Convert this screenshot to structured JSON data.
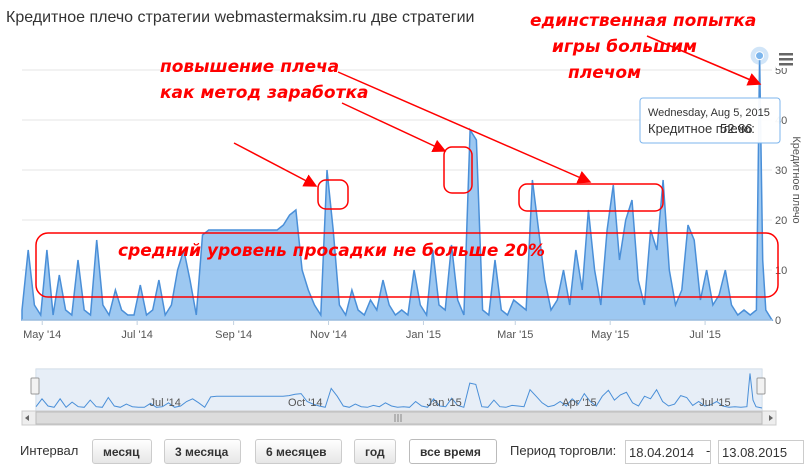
{
  "title": "Кредитное плечо стратегии webmastermaksim.ru две стратегии",
  "chart_data": {
    "type": "area",
    "series": [
      {
        "name": "Кредитное плечо",
        "color": "#7cb5ec"
      }
    ],
    "x": [
      "2014-04-18",
      "2014-04-22",
      "2014-04-26",
      "2014-04-30",
      "2014-05-04",
      "2014-05-08",
      "2014-05-12",
      "2014-05-16",
      "2014-05-20",
      "2014-05-24",
      "2014-05-28",
      "2014-06-01",
      "2014-06-05",
      "2014-06-09",
      "2014-06-13",
      "2014-06-17",
      "2014-06-21",
      "2014-06-25",
      "2014-06-29",
      "2014-07-03",
      "2014-07-07",
      "2014-07-11",
      "2014-07-15",
      "2014-07-19",
      "2014-07-23",
      "2014-07-27",
      "2014-07-31",
      "2014-08-04",
      "2014-08-08",
      "2014-08-12",
      "2014-08-16",
      "2014-08-20",
      "2014-08-24",
      "2014-08-28",
      "2014-09-01",
      "2014-09-05",
      "2014-09-09",
      "2014-09-13",
      "2014-09-17",
      "2014-09-21",
      "2014-09-25",
      "2014-09-29",
      "2014-10-03",
      "2014-10-07",
      "2014-10-11",
      "2014-10-15",
      "2014-10-19",
      "2014-10-23",
      "2014-10-27",
      "2014-10-31",
      "2014-11-04",
      "2014-11-08",
      "2014-11-12",
      "2014-11-16",
      "2014-11-20",
      "2014-11-24",
      "2014-11-28",
      "2014-12-02",
      "2014-12-06",
      "2014-12-10",
      "2014-12-14",
      "2014-12-18",
      "2014-12-22",
      "2014-12-26",
      "2014-12-30",
      "2015-01-03",
      "2015-01-07",
      "2015-01-11",
      "2015-01-15",
      "2015-01-19",
      "2015-01-23",
      "2015-01-27",
      "2015-01-31",
      "2015-02-04",
      "2015-02-08",
      "2015-02-12",
      "2015-02-16",
      "2015-02-20",
      "2015-02-24",
      "2015-02-28",
      "2015-03-04",
      "2015-03-08",
      "2015-03-12",
      "2015-03-16",
      "2015-03-20",
      "2015-03-24",
      "2015-03-28",
      "2015-04-01",
      "2015-04-05",
      "2015-04-09",
      "2015-04-13",
      "2015-04-17",
      "2015-04-21",
      "2015-04-25",
      "2015-04-29",
      "2015-05-03",
      "2015-05-07",
      "2015-05-11",
      "2015-05-15",
      "2015-05-19",
      "2015-05-23",
      "2015-05-27",
      "2015-05-31",
      "2015-06-04",
      "2015-06-08",
      "2015-06-12",
      "2015-06-16",
      "2015-06-20",
      "2015-06-24",
      "2015-06-28",
      "2015-07-02",
      "2015-07-06",
      "2015-07-10",
      "2015-07-14",
      "2015-07-18",
      "2015-07-22",
      "2015-07-26",
      "2015-07-30",
      "2015-08-03",
      "2015-08-05",
      "2015-08-07",
      "2015-08-09",
      "2015-08-13"
    ],
    "y": [
      2,
      14,
      3,
      1,
      14,
      1,
      9,
      2,
      1,
      12,
      2,
      1,
      16,
      3,
      1,
      6,
      2,
      1,
      1,
      7,
      1,
      2,
      8,
      1,
      3,
      10,
      14,
      8,
      1,
      17,
      18,
      18,
      18,
      18,
      18,
      18,
      18,
      18,
      18,
      18,
      18,
      18,
      19,
      21,
      22,
      10,
      6,
      3,
      1,
      30,
      18,
      3,
      1,
      6,
      2,
      1,
      4,
      2,
      8,
      3,
      1,
      2,
      1,
      10,
      3,
      1,
      14,
      3,
      2,
      15,
      4,
      1,
      38,
      36,
      2,
      1,
      12,
      2,
      1,
      4,
      3,
      2,
      28,
      18,
      8,
      2,
      4,
      10,
      3,
      14,
      6,
      22,
      10,
      3,
      18,
      27,
      12,
      20,
      24,
      8,
      3,
      18,
      14,
      28,
      10,
      3,
      6,
      19,
      16,
      4,
      10,
      3,
      5,
      10,
      3,
      1,
      2,
      1,
      2,
      52.86,
      12,
      2,
      0
    ],
    "ylim": [
      0,
      55
    ],
    "yticks": [
      "0",
      "10",
      "20",
      "30",
      "40",
      "50"
    ],
    "xticks": [
      "May '14",
      "Jul '14",
      "Sep '14",
      "Nov '14",
      "Jan '15",
      "Mar '15",
      "May '15",
      "Jul '15"
    ],
    "ylabel": "Кредитное плечо",
    "navigator_ticks": [
      "Jul '14",
      "Oct '14",
      "Jan '15",
      "Apr '15",
      "Jul '15"
    ],
    "grid": true,
    "tooltip": {
      "date": "Wednesday, Aug 5, 2015",
      "label": "Кредитное плечо:",
      "value": "52.86"
    }
  },
  "annotations": {
    "leverage_increase_line1": "повышение плеча",
    "leverage_increase_line2": "как метод заработка",
    "single_attempt_line1": "единственная попытка",
    "single_attempt_line2": "игры большим",
    "single_attempt_line3": "плечом",
    "drawdown": "средний уровень просадки не больше 20%"
  },
  "controls": {
    "interval_label": "Интервал",
    "buttons": [
      "месяц",
      "3 месяца",
      "6 месяцев",
      "год",
      "все время"
    ],
    "period_label": "Период торговли:",
    "date_from": "18.04.2014",
    "date_separator": "-",
    "date_to": "13.08.2015"
  },
  "colors": {
    "series": "#7cb5ec",
    "series_line": "#4a8fd8",
    "annotation": "#ff0000",
    "grid": "#e6e6e6"
  }
}
